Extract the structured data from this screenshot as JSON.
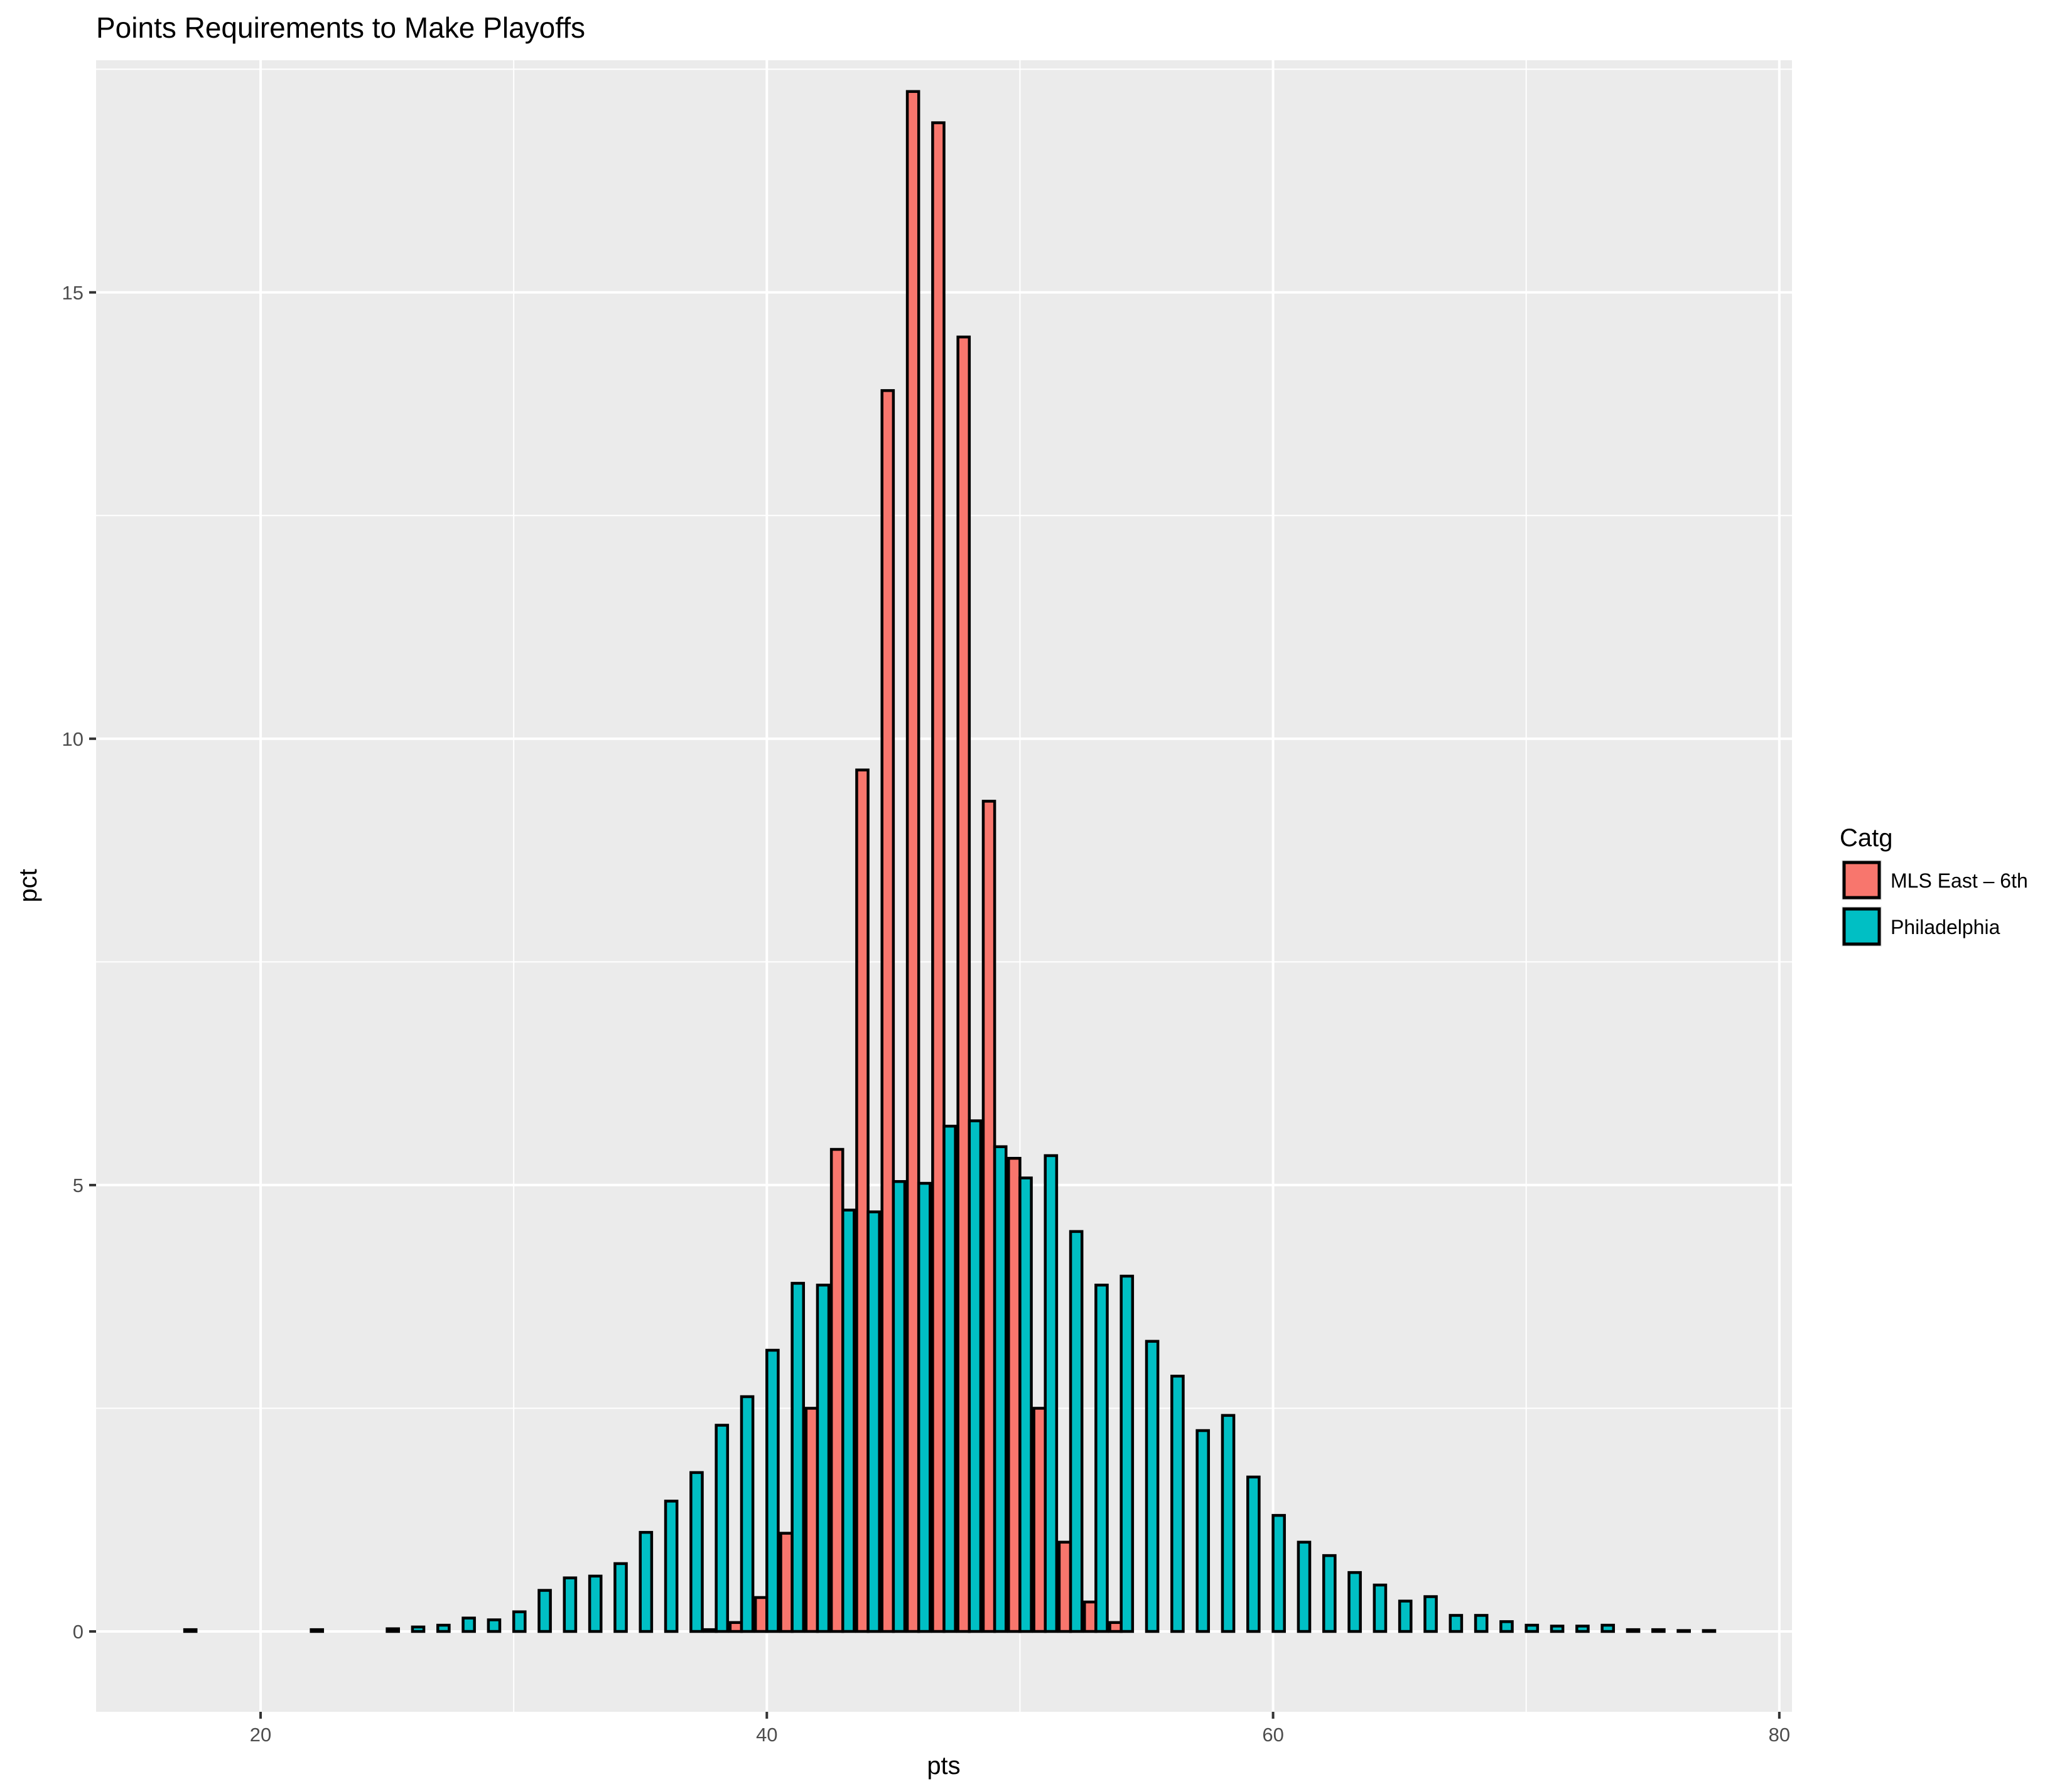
{
  "chart_data": {
    "type": "bar",
    "title": "Points Requirements to Make Playoffs",
    "xlabel": "pts",
    "ylabel": "pct",
    "xlim": [
      13.5,
      80.5
    ],
    "ylim": [
      -0.9,
      17.6
    ],
    "x_ticks": [
      20,
      40,
      60,
      80
    ],
    "x_tick_labels": [
      "20",
      "40",
      "60",
      "80"
    ],
    "y_ticks": [
      0,
      5,
      10,
      15
    ],
    "y_tick_labels": [
      "0",
      "5",
      "10",
      "15"
    ],
    "grid": true,
    "legend": {
      "title": "Catg",
      "position": "right"
    },
    "x": [
      17,
      18,
      19,
      20,
      21,
      22,
      23,
      24,
      25,
      26,
      27,
      28,
      29,
      30,
      31,
      32,
      33,
      34,
      35,
      36,
      37,
      38,
      39,
      40,
      41,
      42,
      43,
      44,
      45,
      46,
      47,
      48,
      49,
      50,
      51,
      52,
      53,
      54,
      55,
      56,
      57,
      58,
      59,
      60,
      61,
      62,
      63,
      64,
      65,
      66,
      67,
      68,
      69,
      70,
      71,
      72,
      73,
      74,
      75,
      76,
      77
    ],
    "series": [
      {
        "name": "MLS East – 6th",
        "color": "#F8766D",
        "values": [
          0,
          0,
          0,
          0,
          0,
          0,
          0,
          0,
          0,
          0,
          0,
          0,
          0,
          0,
          0,
          0,
          0,
          0,
          0,
          0,
          0,
          0.02,
          0.1,
          0.38,
          1.1,
          2.5,
          5.4,
          9.65,
          13.9,
          17.25,
          16.9,
          14.5,
          9.3,
          5.3,
          2.5,
          1.0,
          0.33,
          0.1,
          0,
          0,
          0,
          0,
          0,
          0,
          0,
          0,
          0,
          0,
          0,
          0,
          0,
          0,
          0,
          0,
          0,
          0,
          0,
          0,
          0,
          0,
          0
        ]
      },
      {
        "name": "Philadelphia",
        "color": "#00BFC4",
        "values": [
          0.02,
          0,
          0,
          0,
          0,
          0.02,
          0,
          0,
          0.03,
          0.05,
          0.07,
          0.15,
          0.13,
          0.22,
          0.46,
          0.6,
          0.62,
          0.76,
          1.11,
          1.46,
          1.78,
          2.31,
          2.63,
          3.15,
          3.9,
          3.88,
          4.72,
          4.7,
          5.04,
          5.02,
          5.66,
          5.72,
          5.43,
          5.08,
          5.33,
          4.48,
          3.88,
          3.98,
          3.25,
          2.86,
          2.25,
          2.42,
          1.73,
          1.3,
          1.0,
          0.85,
          0.66,
          0.52,
          0.34,
          0.39,
          0.18,
          0.18,
          0.11,
          0.07,
          0.06,
          0.06,
          0.07,
          0.02,
          0.02,
          0.01,
          0.01
        ]
      }
    ]
  }
}
